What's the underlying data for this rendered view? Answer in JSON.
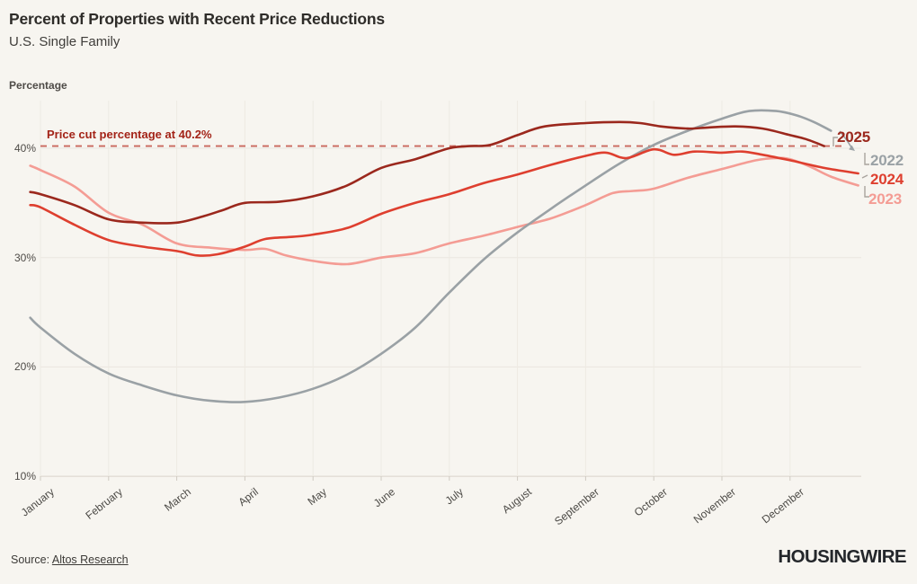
{
  "header": {
    "title": "Percent of Properties with Recent Price Reductions",
    "subtitle": "U.S. Single Family"
  },
  "chart": {
    "axis_title": "Percentage",
    "annotation_label": "Price cut percentage at 40.2%"
  },
  "chart_data": {
    "type": "line",
    "title": "Percent of Properties with Recent Price Reductions",
    "subtitle": "U.S. Single Family",
    "ylabel": "Percentage",
    "ylim": [
      10,
      44
    ],
    "grid": true,
    "legend_position": "right-line-ends",
    "yticks": [
      {
        "label": "40%",
        "value": 40
      },
      {
        "label": "30%",
        "value": 30
      },
      {
        "label": "20%",
        "value": 20
      },
      {
        "label": "10%",
        "value": 10
      }
    ],
    "categories": [
      "January",
      "February",
      "March",
      "April",
      "May",
      "June",
      "July",
      "August",
      "September",
      "October",
      "November",
      "December"
    ],
    "x_unit": "months since Jan 1 (fractional)",
    "annotation": {
      "label": "Price cut percentage at 40.2%",
      "value": 40.2
    },
    "series": [
      {
        "name": "2023",
        "color": "#f49c94",
        "points": [
          [
            -0.15,
            38.4
          ],
          [
            0,
            38.0
          ],
          [
            0.5,
            36.5
          ],
          [
            1,
            34.1
          ],
          [
            1.5,
            33.0
          ],
          [
            2,
            31.3
          ],
          [
            2.5,
            30.9
          ],
          [
            3,
            30.7
          ],
          [
            3.3,
            30.8
          ],
          [
            3.6,
            30.2
          ],
          [
            4,
            29.7
          ],
          [
            4.5,
            29.4
          ],
          [
            5,
            30.0
          ],
          [
            5.5,
            30.4
          ],
          [
            6,
            31.3
          ],
          [
            6.5,
            32.0
          ],
          [
            7,
            32.8
          ],
          [
            7.5,
            33.6
          ],
          [
            8,
            34.8
          ],
          [
            8.4,
            35.9
          ],
          [
            8.7,
            36.1
          ],
          [
            9,
            36.3
          ],
          [
            9.5,
            37.3
          ],
          [
            10,
            38.1
          ],
          [
            10.5,
            38.9
          ],
          [
            10.8,
            39.1
          ],
          [
            11,
            39.0
          ],
          [
            11.3,
            38.3
          ],
          [
            11.6,
            37.4
          ],
          [
            12,
            36.6
          ]
        ]
      },
      {
        "name": "2022",
        "color": "#9aa1a5",
        "points": [
          [
            -0.15,
            24.5
          ],
          [
            0,
            23.6
          ],
          [
            0.5,
            21.2
          ],
          [
            1,
            19.4
          ],
          [
            1.5,
            18.3
          ],
          [
            2,
            17.4
          ],
          [
            2.5,
            16.9
          ],
          [
            3,
            16.8
          ],
          [
            3.5,
            17.2
          ],
          [
            4,
            18.0
          ],
          [
            4.5,
            19.3
          ],
          [
            5,
            21.2
          ],
          [
            5.5,
            23.6
          ],
          [
            6,
            26.8
          ],
          [
            6.5,
            29.8
          ],
          [
            7,
            32.3
          ],
          [
            7.5,
            34.5
          ],
          [
            8,
            36.6
          ],
          [
            8.5,
            38.6
          ],
          [
            9,
            40.3
          ],
          [
            9.5,
            41.6
          ],
          [
            10,
            42.7
          ],
          [
            10.4,
            43.4
          ],
          [
            10.8,
            43.4
          ],
          [
            11.1,
            43.0
          ],
          [
            11.35,
            42.4
          ],
          [
            11.6,
            41.6
          ]
        ]
      },
      {
        "name": "2024",
        "color": "#de3f2f",
        "points": [
          [
            -0.15,
            34.8
          ],
          [
            0,
            34.6
          ],
          [
            0.5,
            33.0
          ],
          [
            1,
            31.6
          ],
          [
            1.5,
            31.0
          ],
          [
            2,
            30.6
          ],
          [
            2.3,
            30.2
          ],
          [
            2.6,
            30.3
          ],
          [
            3,
            31.0
          ],
          [
            3.3,
            31.7
          ],
          [
            3.7,
            31.9
          ],
          [
            4,
            32.1
          ],
          [
            4.5,
            32.7
          ],
          [
            5,
            34.0
          ],
          [
            5.5,
            35.0
          ],
          [
            6,
            35.8
          ],
          [
            6.5,
            36.8
          ],
          [
            7,
            37.6
          ],
          [
            7.5,
            38.5
          ],
          [
            8,
            39.3
          ],
          [
            8.3,
            39.6
          ],
          [
            8.6,
            39.1
          ],
          [
            9,
            39.9
          ],
          [
            9.3,
            39.4
          ],
          [
            9.6,
            39.7
          ],
          [
            10,
            39.6
          ],
          [
            10.3,
            39.7
          ],
          [
            10.6,
            39.4
          ],
          [
            11,
            38.9
          ],
          [
            11.5,
            38.2
          ],
          [
            12,
            37.7
          ]
        ]
      },
      {
        "name": "2025",
        "color": "#9b281d",
        "points": [
          [
            -0.15,
            36.0
          ],
          [
            0,
            35.8
          ],
          [
            0.5,
            34.8
          ],
          [
            1,
            33.5
          ],
          [
            1.5,
            33.2
          ],
          [
            2,
            33.2
          ],
          [
            2.4,
            33.8
          ],
          [
            2.7,
            34.4
          ],
          [
            3,
            35.0
          ],
          [
            3.5,
            35.1
          ],
          [
            4,
            35.6
          ],
          [
            4.5,
            36.6
          ],
          [
            5,
            38.2
          ],
          [
            5.5,
            39.0
          ],
          [
            6,
            40.0
          ],
          [
            6.3,
            40.2
          ],
          [
            6.6,
            40.3
          ],
          [
            7,
            41.2
          ],
          [
            7.4,
            42.0
          ],
          [
            8,
            42.3
          ],
          [
            8.5,
            42.4
          ],
          [
            8.8,
            42.3
          ],
          [
            9.1,
            42.0
          ],
          [
            9.5,
            41.8
          ],
          [
            9.8,
            41.9
          ],
          [
            10.2,
            42.0
          ],
          [
            10.6,
            41.8
          ],
          [
            11,
            41.2
          ],
          [
            11.25,
            40.8
          ],
          [
            11.5,
            40.2
          ]
        ]
      }
    ]
  },
  "footer": {
    "source_prefix": "Source: ",
    "source_link": "Altos Research",
    "brand": "HOUSINGWIRE"
  }
}
